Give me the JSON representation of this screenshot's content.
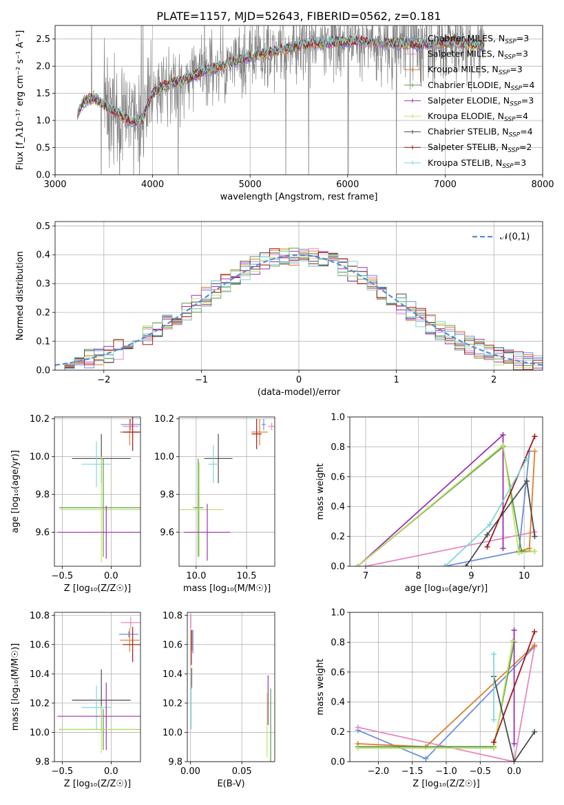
{
  "figure_title": "PLATE=1157, MJD=52643, FIBERID=0562, z=0.181",
  "colors": {
    "Chabrier MILES": "#6a8fd8",
    "Salpeter MILES": "#e688c0",
    "Kroupa MILES": "#e07b2a",
    "Chabrier ELODIE": "#5a9a4a",
    "Salpeter ELODIE": "#9b2fb0",
    "Kroupa ELODIE": "#bfe26a",
    "Chabrier STELIB": "#4a4a4a",
    "Salpeter STELIB": "#a01818",
    "Kroupa STELIB": "#7fd6dc",
    "data": "#808080",
    "normal": "#5b87d6"
  },
  "chart_data": [
    {
      "id": "spectrum",
      "type": "line",
      "xlabel": "wavelength [Angstrom, rest frame]",
      "ylabel": "Flux [f_λ10⁻¹⁷ erg cm⁻² s⁻¹ A⁻¹]",
      "xlim": [
        3000,
        8000
      ],
      "ylim": [
        0,
        2.75
      ],
      "xticks": [
        3000,
        4000,
        5000,
        6000,
        7000,
        8000
      ],
      "yticks": [
        0.0,
        0.5,
        1.0,
        1.5,
        2.0,
        2.5
      ],
      "legend_position": "top-right",
      "series": [
        {
          "name": "Chabrier MILES, N_SSP=3"
        },
        {
          "name": "Salpeter MILES, N_SSP=3"
        },
        {
          "name": "Kroupa MILES, N_SSP=3"
        },
        {
          "name": "Chabrier ELODIE, N_SSP=4"
        },
        {
          "name": "Salpeter ELODIE, N_SSP=3"
        },
        {
          "name": "Kroupa ELODIE, N_SSP=4"
        },
        {
          "name": "Chabrier STELIB, N_SSP=4"
        },
        {
          "name": "Salpeter STELIB, N_SSP=2"
        },
        {
          "name": "Kroupa STELIB, N_SSP=3"
        }
      ],
      "model_trend": {
        "x": [
          3230,
          3300,
          3400,
          3500,
          3600,
          3700,
          3800,
          3900,
          4000,
          4100,
          4200,
          4300,
          4500,
          4700,
          4900,
          5100,
          5300,
          5500,
          5700,
          5900,
          6100,
          6300,
          6500,
          6700,
          6900,
          7100,
          7300,
          7400
        ],
        "y": [
          1.15,
          1.35,
          1.42,
          1.28,
          1.18,
          1.05,
          0.98,
          1.02,
          1.5,
          1.62,
          1.7,
          1.72,
          1.88,
          2.0,
          2.12,
          2.22,
          2.3,
          2.38,
          2.42,
          2.45,
          2.46,
          2.44,
          2.42,
          2.4,
          2.42,
          2.45,
          2.4,
          2.35
        ]
      }
    },
    {
      "id": "residuals",
      "type": "line",
      "xlabel": "(data-model)/error",
      "ylabel": "Normed distribution",
      "xlim": [
        -2.5,
        2.5
      ],
      "ylim": [
        0,
        0.515
      ],
      "xticks": [
        -2,
        -1,
        0,
        1,
        2
      ],
      "yticks": [
        0.0,
        0.1,
        0.2,
        0.3,
        0.4,
        0.5
      ],
      "legend": "𝒩(0,1)",
      "legend_position": "top-right",
      "bin_width": 0.1
    },
    {
      "id": "age_vs_Z",
      "type": "scatter",
      "xlabel": "Z [log₁₀(Z/Z☉)]",
      "ylabel": "age  [log₁₀(age/yr)]",
      "xlim": [
        -0.58,
        0.3
      ],
      "ylim": [
        9.42,
        10.21
      ],
      "xticks": [
        -0.5,
        0.0
      ],
      "yticks": [
        9.6,
        9.8,
        10.0,
        10.2
      ],
      "points": [
        {
          "model": "Chabrier MILES",
          "x": 0.2,
          "xerr": 0.1,
          "y": 10.17,
          "yerr": 0.03
        },
        {
          "model": "Salpeter MILES",
          "x": 0.2,
          "xerr": 0.08,
          "y": 10.16,
          "yerr": 0.02
        },
        {
          "model": "Kroupa MILES",
          "x": 0.19,
          "xerr": 0.1,
          "y": 10.13,
          "yerr": 0.07
        },
        {
          "model": "Salpeter STELIB",
          "x": 0.22,
          "xerr": 0.1,
          "y": 10.13,
          "yerr": 0.1
        },
        {
          "model": "Chabrier STELIB",
          "x": -0.1,
          "xerr": 0.3,
          "y": 9.99,
          "yerr": 0.13
        },
        {
          "model": "Kroupa STELIB",
          "x": -0.15,
          "xerr": 0.15,
          "y": 9.96,
          "yerr": 0.12
        },
        {
          "model": "Chabrier ELODIE",
          "x": -0.08,
          "xerr": 0.45,
          "y": 9.73,
          "yerr": 0.26
        },
        {
          "model": "Kroupa ELODIE",
          "x": -0.1,
          "xerr": 0.42,
          "y": 9.72,
          "yerr": 0.28
        },
        {
          "model": "Salpeter ELODIE",
          "x": -0.05,
          "xerr": 0.5,
          "y": 9.6,
          "yerr": 0.14
        }
      ]
    },
    {
      "id": "age_vs_mass",
      "type": "scatter",
      "xlabel": "mass [log₁₀(M/M☉)]",
      "ylabel": "",
      "xlim": [
        9.83,
        10.78
      ],
      "ylim": [
        9.42,
        10.21
      ],
      "xticks": [
        10.0,
        10.5
      ],
      "yticks": [
        9.6,
        9.8,
        10.0,
        10.2
      ],
      "points": [
        {
          "model": "Chabrier MILES",
          "x": 10.67,
          "xerr": 0.02,
          "y": 10.17,
          "yerr": 0.03
        },
        {
          "model": "Salpeter MILES",
          "x": 10.75,
          "xerr": 0.04,
          "y": 10.16,
          "yerr": 0.02
        },
        {
          "model": "Kroupa MILES",
          "x": 10.63,
          "xerr": 0.08,
          "y": 10.13,
          "yerr": 0.07
        },
        {
          "model": "Salpeter STELIB",
          "x": 10.6,
          "xerr": 0.05,
          "y": 10.12,
          "yerr": 0.08
        },
        {
          "model": "Chabrier STELIB",
          "x": 10.22,
          "xerr": 0.14,
          "y": 9.99,
          "yerr": 0.13
        },
        {
          "model": "Kroupa STELIB",
          "x": 10.17,
          "xerr": 0.05,
          "y": 9.96,
          "yerr": 0.1
        },
        {
          "model": "Chabrier ELODIE",
          "x": 10.02,
          "xerr": 0.05,
          "y": 9.73,
          "yerr": 0.26
        },
        {
          "model": "Kroupa ELODIE",
          "x": 10.03,
          "xerr": 0.24,
          "y": 9.72,
          "yerr": 0.25
        },
        {
          "model": "Salpeter ELODIE",
          "x": 10.11,
          "xerr": 0.23,
          "y": 9.6,
          "yerr": 0.15
        }
      ]
    },
    {
      "id": "weight_vs_age",
      "type": "line",
      "xlabel": "age  [log₁₀(age/yr)]",
      "ylabel": "mass weight",
      "xlim": [
        6.7,
        10.35
      ],
      "ylim": [
        0,
        1.0
      ],
      "xticks": [
        7,
        8,
        9,
        10
      ],
      "yticks": [
        0.0,
        0.2,
        0.4,
        0.6,
        0.8,
        1.0
      ],
      "series": [
        {
          "model": "Chabrier MILES",
          "x": [
            8.5,
            9.9,
            10.1
          ],
          "y": [
            0.0,
            0.1,
            0.77
          ]
        },
        {
          "model": "Salpeter MILES",
          "x": [
            7.0,
            10.2
          ],
          "y": [
            0.0,
            0.23
          ]
        },
        {
          "model": "Kroupa MILES",
          "x": [
            9.9,
            10.1,
            10.2
          ],
          "y": [
            0.1,
            0.12,
            0.77
          ]
        },
        {
          "model": "Chabrier ELODIE",
          "x": [
            6.85,
            9.6,
            9.95,
            10.2
          ],
          "y": [
            0.0,
            0.8,
            0.1,
            0.1
          ]
        },
        {
          "model": "Salpeter ELODIE",
          "x": [
            6.85,
            9.6,
            9.6
          ],
          "y": [
            0.0,
            0.88,
            0.12
          ]
        },
        {
          "model": "Kroupa ELODIE",
          "x": [
            6.85,
            9.6,
            9.9,
            10.2
          ],
          "y": [
            0.0,
            0.81,
            0.09,
            0.1
          ]
        },
        {
          "model": "Chabrier STELIB",
          "x": [
            8.9,
            9.3,
            10.05,
            10.2
          ],
          "y": [
            0.0,
            0.21,
            0.57,
            0.2
          ]
        },
        {
          "model": "Salpeter STELIB",
          "x": [
            9.3,
            10.2
          ],
          "y": [
            0.13,
            0.87
          ]
        },
        {
          "model": "Kroupa STELIB",
          "x": [
            8.5,
            9.35,
            10.05
          ],
          "y": [
            0.0,
            0.28,
            0.72
          ]
        }
      ]
    },
    {
      "id": "mass_vs_Z",
      "type": "scatter",
      "xlabel": "Z [log₁₀(Z/Z☉)]",
      "ylabel": "mass [log₁₀(M/M☉)]",
      "xlim": [
        -0.58,
        0.3
      ],
      "ylim": [
        9.8,
        10.82
      ],
      "xticks": [
        -0.5,
        0.0
      ],
      "yticks": [
        9.8,
        10.0,
        10.2,
        10.4,
        10.6,
        10.8
      ],
      "points": [
        {
          "model": "Salpeter MILES",
          "x": 0.2,
          "xerr": 0.1,
          "y": 10.75,
          "yerr": 0.04
        },
        {
          "model": "Chabrier MILES",
          "x": 0.18,
          "xerr": 0.1,
          "y": 10.67,
          "yerr": 0.02
        },
        {
          "model": "Kroupa MILES",
          "x": 0.19,
          "xerr": 0.1,
          "y": 10.63,
          "yerr": 0.08
        },
        {
          "model": "Salpeter STELIB",
          "x": 0.22,
          "xerr": 0.1,
          "y": 10.6,
          "yerr": 0.12
        },
        {
          "model": "Chabrier STELIB",
          "x": -0.1,
          "xerr": 0.3,
          "y": 10.22,
          "yerr": 0.21
        },
        {
          "model": "Kroupa STELIB",
          "x": -0.15,
          "xerr": 0.15,
          "y": 10.17,
          "yerr": 0.15
        },
        {
          "model": "Salpeter ELODIE",
          "x": -0.05,
          "xerr": 0.5,
          "y": 10.11,
          "yerr": 0.23
        },
        {
          "model": "Chabrier ELODIE",
          "x": -0.08,
          "xerr": 0.45,
          "y": 10.02,
          "yerr": 0.14
        },
        {
          "model": "Kroupa ELODIE",
          "x": -0.1,
          "xerr": 0.42,
          "y": 10.02,
          "yerr": 0.16
        }
      ]
    },
    {
      "id": "mass_vs_ebv",
      "type": "scatter",
      "xlabel": "E(B-V)",
      "ylabel": "",
      "xlim": [
        -0.003,
        0.082
      ],
      "ylim": [
        9.8,
        10.82
      ],
      "xticks": [
        0.0,
        0.05
      ],
      "yticks": [
        9.8,
        10.0,
        10.2,
        10.4,
        10.6,
        10.8
      ],
      "points": [
        {
          "model": "Salpeter MILES",
          "x": 0.0005,
          "y": 10.76,
          "yerr": 0.05
        },
        {
          "model": "Chabrier MILES",
          "x": 0.0025,
          "y": 10.62,
          "yerr": 0.08
        },
        {
          "model": "Kroupa MILES",
          "x": 0.0015,
          "y": 10.63,
          "yerr": 0.07
        },
        {
          "model": "Salpeter STELIB",
          "x": 0.001,
          "y": 10.58,
          "yerr": 0.12
        },
        {
          "model": "Chabrier STELIB",
          "x": 0.0012,
          "y": 10.37,
          "yerr": 0.07
        },
        {
          "model": "Kroupa STELIB",
          "x": 0.0008,
          "y": 10.17,
          "yerr": 0.15
        },
        {
          "model": "Salpeter ELODIE",
          "x": 0.0755,
          "y": 10.22,
          "yerr": 0.17
        },
        {
          "model": "Kroupa ELODIE",
          "x": 0.0745,
          "y": 10.05,
          "yerr": 0.22
        },
        {
          "model": "Chabrier ELODIE",
          "x": 0.078,
          "y": 10.05,
          "yerr": 0.25
        }
      ]
    },
    {
      "id": "weight_vs_Z",
      "type": "line",
      "xlabel": "Z [log₁₀(Z/Z☉)]",
      "ylabel": "mass weight",
      "xlim": [
        -2.42,
        0.42
      ],
      "ylim": [
        0,
        1.0
      ],
      "xticks": [
        -2.0,
        -1.5,
        -1.0,
        -0.5,
        0.0
      ],
      "yticks": [
        0.0,
        0.2,
        0.4,
        0.6,
        0.8,
        1.0
      ],
      "series": [
        {
          "model": "Chabrier MILES",
          "x": [
            -2.3,
            -1.3,
            0.3
          ],
          "y": [
            0.21,
            0.02,
            0.77
          ]
        },
        {
          "model": "Salpeter MILES",
          "x": [
            -2.3,
            0.0,
            0.3
          ],
          "y": [
            0.23,
            0.0,
            0.77
          ]
        },
        {
          "model": "Kroupa MILES",
          "x": [
            -2.3,
            -1.3,
            0.3
          ],
          "y": [
            0.12,
            0.1,
            0.78
          ]
        },
        {
          "model": "Chabrier ELODIE",
          "x": [
            -2.3,
            -0.3,
            0.0
          ],
          "y": [
            0.1,
            0.1,
            0.8
          ]
        },
        {
          "model": "Salpeter ELODIE",
          "x": [
            0.0,
            0.0
          ],
          "y": [
            0.12,
            0.88
          ]
        },
        {
          "model": "Kroupa ELODIE",
          "x": [
            -2.3,
            -0.3,
            -0.02
          ],
          "y": [
            0.09,
            0.09,
            0.81
          ]
        },
        {
          "model": "Chabrier STELIB",
          "x": [
            -0.3,
            0.0,
            0.3
          ],
          "y": [
            0.57,
            0.0,
            0.2
          ]
        },
        {
          "model": "Salpeter STELIB",
          "x": [
            -0.3,
            0.3
          ],
          "y": [
            0.13,
            0.87
          ]
        },
        {
          "model": "Kroupa STELIB",
          "x": [
            -0.3,
            -0.3
          ],
          "y": [
            0.28,
            0.72
          ]
        }
      ]
    }
  ]
}
